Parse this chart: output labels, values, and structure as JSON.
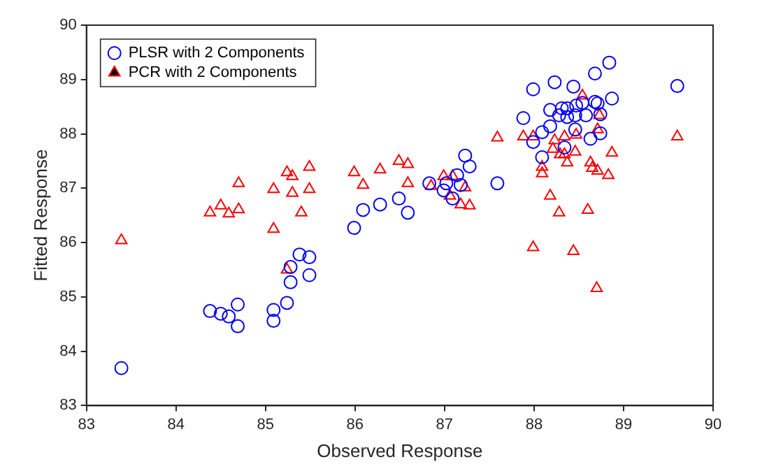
{
  "chart_data": {
    "type": "scatter",
    "xlabel": "Observed Response",
    "ylabel": "Fitted Response",
    "xlim": [
      83,
      90
    ],
    "ylim": [
      83,
      90
    ],
    "xticks": [
      83,
      84,
      85,
      86,
      87,
      88,
      89,
      90
    ],
    "yticks": [
      83,
      84,
      85,
      86,
      87,
      88,
      89,
      90
    ],
    "grid": false,
    "legend": "top left",
    "series": [
      {
        "name": "PLSR with 2 Components",
        "color": "#0000ff",
        "marker": "circle",
        "x": [
          83.39,
          84.38,
          84.5,
          84.59,
          84.69,
          84.69,
          85.09,
          85.09,
          85.24,
          85.28,
          85.28,
          85.38,
          85.49,
          85.49,
          85.99,
          86.09,
          86.28,
          86.49,
          86.59,
          86.83,
          86.99,
          87.02,
          87.09,
          87.14,
          87.23,
          87.28,
          87.18,
          87.59,
          88.84,
          88.68,
          89.6,
          88.23,
          88.44,
          87.99,
          87.88,
          88.87,
          88.18,
          88.31,
          88.37,
          88.47,
          88.54,
          88.68,
          88.71,
          88.28,
          88.37,
          88.46,
          88.58,
          88.74,
          88.18,
          88.09,
          88.46,
          88.74,
          88.63,
          87.99,
          88.09,
          88.34
        ],
        "values": [
          83.69,
          84.74,
          84.69,
          84.64,
          84.86,
          84.46,
          84.56,
          84.76,
          84.89,
          85.27,
          85.55,
          85.78,
          85.73,
          85.4,
          86.27,
          86.6,
          86.7,
          86.81,
          86.55,
          87.09,
          86.96,
          87.09,
          86.81,
          87.24,
          87.6,
          87.4,
          87.06,
          87.09,
          89.31,
          89.11,
          88.88,
          88.95,
          88.87,
          88.82,
          88.29,
          88.65,
          88.44,
          88.47,
          88.47,
          88.52,
          88.57,
          88.59,
          88.56,
          88.34,
          88.31,
          88.34,
          88.34,
          88.36,
          88.14,
          88.03,
          88.08,
          88.01,
          87.91,
          87.85,
          87.57,
          87.75
        ]
      },
      {
        "name": "PCR with 2 Components",
        "color": "#ff0000",
        "marker": "triangle",
        "x": [
          83.39,
          84.38,
          84.5,
          84.59,
          84.7,
          84.7,
          85.09,
          85.09,
          85.24,
          85.3,
          85.3,
          85.49,
          85.49,
          85.4,
          85.24,
          85.99,
          86.09,
          86.28,
          86.49,
          86.59,
          86.59,
          86.85,
          86.99,
          87.06,
          87.09,
          87.18,
          87.28,
          87.23,
          87.59,
          87.88,
          87.99,
          87.99,
          88.54,
          88.73,
          88.71,
          88.87,
          88.23,
          88.34,
          88.47,
          88.21,
          88.29,
          88.34,
          88.46,
          88.37,
          88.09,
          88.09,
          88.63,
          88.65,
          88.71,
          88.83,
          89.6,
          88.18,
          88.28,
          88.6,
          88.44,
          88.7
        ],
        "values": [
          86.04,
          86.55,
          86.68,
          86.53,
          86.61,
          87.09,
          86.25,
          86.98,
          87.29,
          87.22,
          86.91,
          87.39,
          86.98,
          86.55,
          85.5,
          87.29,
          87.06,
          87.34,
          87.5,
          87.44,
          87.09,
          87.04,
          87.22,
          86.86,
          87.22,
          86.7,
          86.68,
          87.01,
          87.93,
          87.95,
          87.95,
          85.91,
          88.7,
          88.34,
          88.08,
          87.65,
          87.88,
          87.95,
          87.98,
          87.72,
          87.62,
          87.62,
          87.67,
          87.47,
          87.39,
          87.27,
          87.47,
          87.37,
          87.32,
          87.24,
          87.95,
          86.86,
          86.55,
          86.6,
          85.84,
          85.16
        ]
      }
    ]
  }
}
